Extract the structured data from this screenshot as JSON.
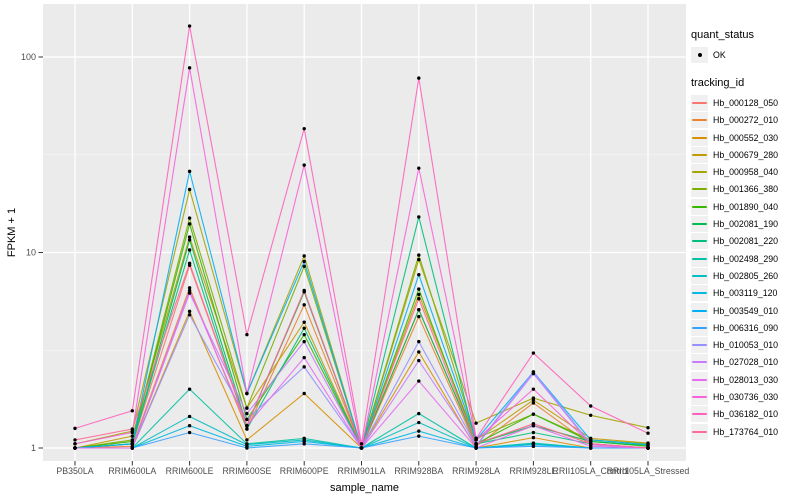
{
  "chart_data": {
    "type": "line",
    "title": "",
    "xlabel": "sample_name",
    "ylabel": "FPKM + 1",
    "x_axis": {
      "categories": [
        "PB350LA",
        "RRIM600LA",
        "RRIM600LE",
        "RRIM600SE",
        "RRIM600PE",
        "RRIM901LA",
        "RRIM928BA",
        "RRIM928LA",
        "RRIM928LE",
        "RRII105LA_Control",
        "RRII105LA_Stressed"
      ]
    },
    "y_axis": {
      "scale": "log10",
      "major_ticks": [
        1,
        10,
        100
      ],
      "tick_labels": [
        "1",
        "10",
        "100"
      ],
      "minor_ticks": [
        3.162,
        31.62
      ],
      "range_approx": [
        0.86,
        190
      ]
    },
    "style": {
      "panel_bg": "#EBEBEB",
      "grid_major": "#FFFFFF",
      "grid_minor": "#F5F5F5",
      "tick_label_color": "#4D4D4D",
      "axis_title_color": "#000000",
      "point_color": "#000000",
      "legend_key_bg": "#F0F0F0"
    },
    "legends": {
      "quant_status": {
        "title": "quant_status",
        "items": [
          "OK"
        ],
        "marker": "point"
      },
      "tracking_id": {
        "title": "tracking_id"
      }
    },
    "series": [
      {
        "name": "Hb_000128_050",
        "color": "#F8766D",
        "values": [
          1.0,
          1.05,
          8.6,
          1.3,
          6.3,
          1.0,
          5.1,
          1.05,
          1.33,
          1.05,
          1.0
        ]
      },
      {
        "name": "Hb_000272_010",
        "color": "#EA8331",
        "values": [
          1.0,
          1.02,
          6.6,
          1.25,
          5.4,
          1.0,
          4.7,
          1.02,
          1.7,
          1.04,
          1.0
        ]
      },
      {
        "name": "Hb_000552_030",
        "color": "#D89000",
        "values": [
          1.0,
          1.0,
          5.0,
          1.1,
          1.9,
          1.0,
          3.1,
          1.0,
          1.13,
          1.0,
          1.0
        ]
      },
      {
        "name": "Hb_000679_280",
        "color": "#C09B00",
        "values": [
          1.0,
          1.15,
          12.0,
          1.6,
          4.4,
          1.0,
          6.1,
          1.1,
          1.76,
          1.12,
          1.06
        ]
      },
      {
        "name": "Hb_000958_040",
        "color": "#A3A500",
        "values": [
          1.05,
          1.22,
          21.0,
          1.9,
          9.6,
          1.0,
          9.2,
          1.34,
          1.8,
          1.47,
          1.27
        ]
      },
      {
        "name": "Hb_001366_380",
        "color": "#7CAE00",
        "values": [
          1.0,
          1.1,
          15.0,
          1.6,
          8.5,
          1.0,
          9.7,
          1.12,
          1.49,
          1.1,
          1.05
        ]
      },
      {
        "name": "Hb_001890_040",
        "color": "#39B600",
        "values": [
          1.0,
          1.08,
          14.0,
          1.4,
          3.8,
          1.0,
          6.5,
          1.05,
          1.49,
          1.08,
          1.02
        ]
      },
      {
        "name": "Hb_002081_190",
        "color": "#00BB4E",
        "values": [
          1.0,
          1.05,
          11.6,
          1.3,
          6.3,
          1.0,
          5.1,
          1.05,
          1.3,
          1.08,
          1.03
        ]
      },
      {
        "name": "Hb_002081_220",
        "color": "#00BF7D",
        "values": [
          1.0,
          1.05,
          10.3,
          1.25,
          4.1,
          1.0,
          15.2,
          1.05,
          1.2,
          1.05,
          1.0
        ]
      },
      {
        "name": "Hb_002498_290",
        "color": "#00C1A3",
        "values": [
          1.0,
          1.0,
          2.0,
          1.05,
          1.12,
          1.0,
          1.5,
          1.0,
          1.06,
          1.0,
          1.0
        ]
      },
      {
        "name": "Hb_002805_260",
        "color": "#00BFC4",
        "values": [
          1.0,
          1.0,
          1.45,
          1.04,
          1.1,
          1.0,
          1.35,
          1.0,
          1.05,
          1.0,
          1.0
        ]
      },
      {
        "name": "Hb_003119_120",
        "color": "#00BAE0",
        "values": [
          1.0,
          1.0,
          1.3,
          1.02,
          1.08,
          1.0,
          1.22,
          1.0,
          1.04,
          1.0,
          1.0
        ]
      },
      {
        "name": "Hb_003549_010",
        "color": "#00B0F6",
        "values": [
          1.0,
          1.05,
          26.0,
          1.9,
          9.0,
          1.0,
          7.7,
          1.1,
          2.45,
          1.1,
          1.04
        ]
      },
      {
        "name": "Hb_006316_090",
        "color": "#35A2FF",
        "values": [
          1.0,
          1.0,
          1.2,
          1.0,
          1.05,
          1.0,
          1.15,
          1.0,
          1.02,
          1.0,
          1.0
        ]
      },
      {
        "name": "Hb_010053_010",
        "color": "#9590FF",
        "values": [
          1.0,
          1.0,
          4.8,
          1.4,
          2.6,
          1.0,
          3.5,
          1.03,
          2.45,
          1.05,
          1.0
        ]
      },
      {
        "name": "Hb_027028_010",
        "color": "#C77CFF",
        "values": [
          1.0,
          1.0,
          6.2,
          1.5,
          3.5,
          1.0,
          2.8,
          1.02,
          2.4,
          1.04,
          1.0
        ]
      },
      {
        "name": "Hb_028013_030",
        "color": "#E76BF3",
        "values": [
          1.0,
          1.0,
          6.4,
          1.3,
          2.9,
          1.0,
          2.2,
          1.0,
          1.3,
          1.02,
          1.0
        ]
      },
      {
        "name": "Hb_030736_030",
        "color": "#FA62DB",
        "values": [
          1.05,
          1.2,
          88.0,
          1.9,
          28.0,
          1.0,
          27.0,
          1.1,
          2.0,
          1.05,
          1.0
        ]
      },
      {
        "name": "Hb_036182_010",
        "color": "#FF62BC",
        "values": [
          1.26,
          1.55,
          144.0,
          3.8,
          43.0,
          1.05,
          78.0,
          1.12,
          3.06,
          1.64,
          1.19
        ]
      },
      {
        "name": "Hb_173764_010",
        "color": "#FF6A98",
        "values": [
          1.1,
          1.25,
          8.8,
          1.3,
          6.4,
          1.0,
          5.8,
          1.05,
          1.33,
          1.05,
          1.0
        ]
      }
    ]
  }
}
